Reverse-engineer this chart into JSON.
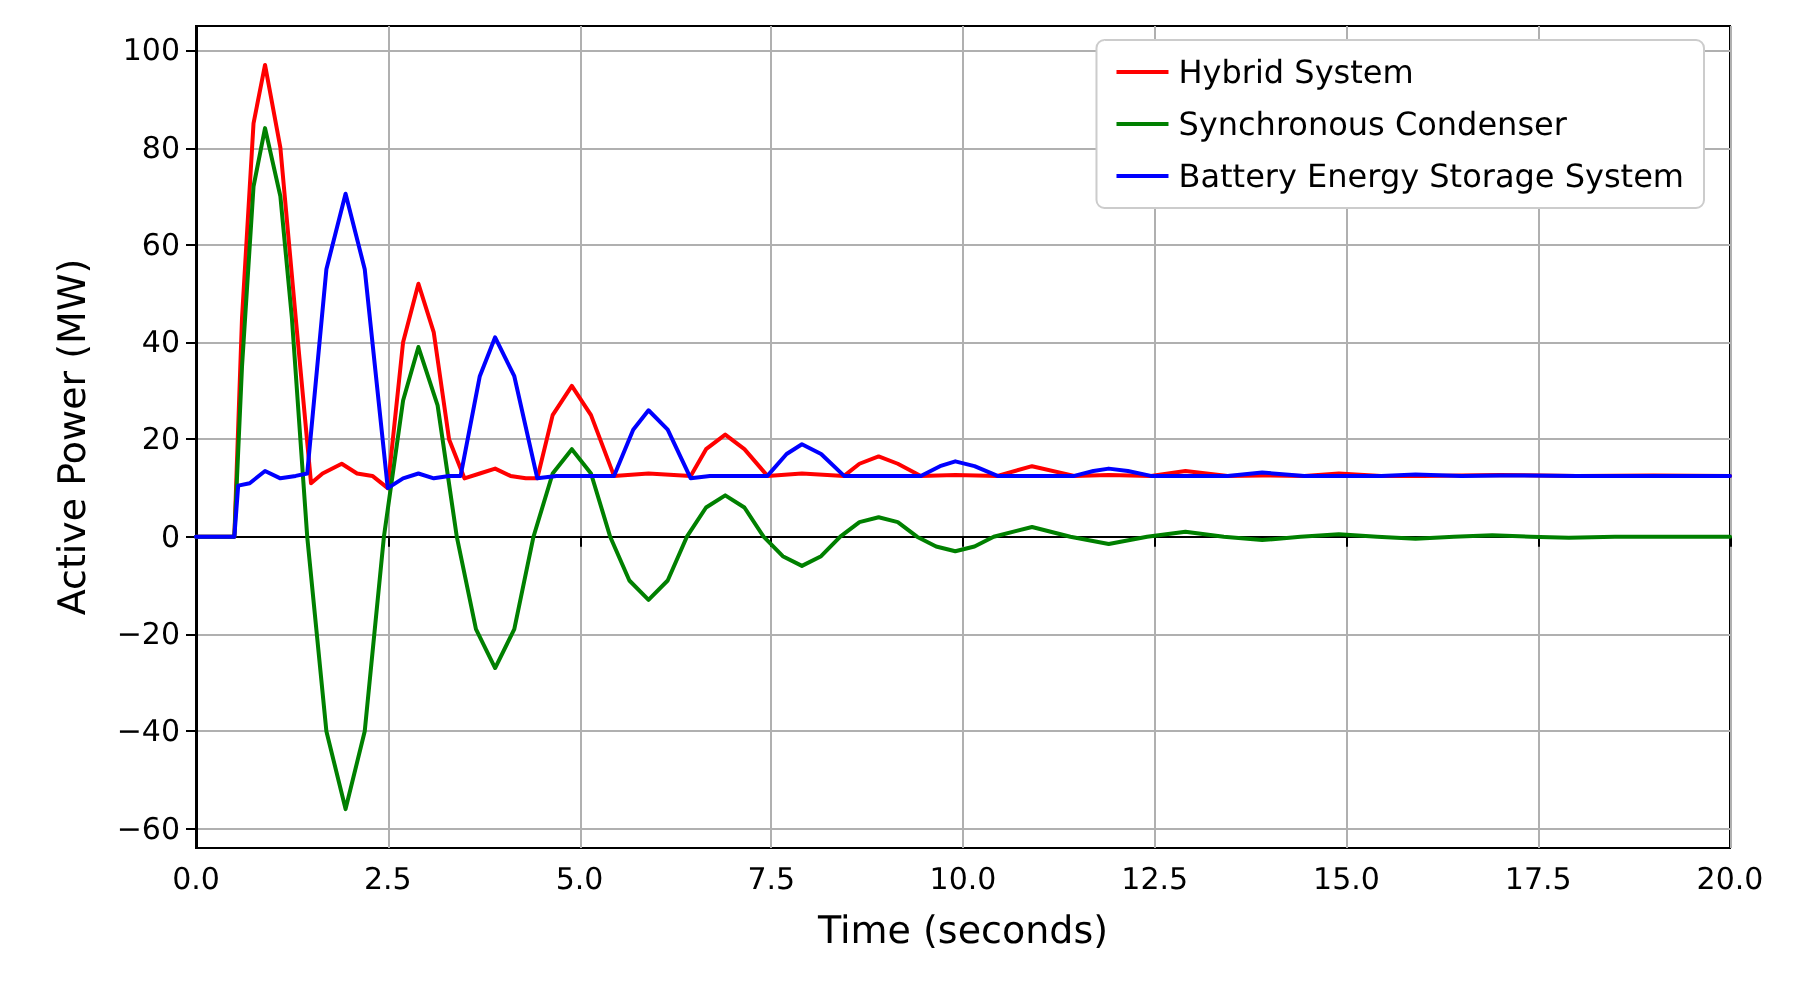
{
  "chart_data": {
    "type": "line",
    "xlabel": "Time (seconds)",
    "ylabel": "Active Power (MW)",
    "xlim": [
      0,
      20
    ],
    "xticks": [
      {
        "value": 0,
        "label": "0.0"
      },
      2.5,
      {
        "value": 5,
        "label": "5.0"
      },
      7.5,
      {
        "value": 10,
        "label": "10.0"
      },
      12.5,
      {
        "value": 15,
        "label": "15.0"
      },
      17.5,
      {
        "value": 20,
        "label": "20.0"
      }
    ],
    "ylim": [
      -64,
      105
    ],
    "yticks": [
      -60,
      -40,
      -20,
      0,
      20,
      40,
      60,
      80,
      100
    ],
    "grid": true,
    "legend": "top right",
    "marker": "none",
    "line_style": "solid",
    "series": [
      {
        "name": "Hybrid System",
        "color": "#ff0000",
        "x": [
          0,
          0.5,
          0.6,
          0.75,
          0.9,
          1.1,
          1.3,
          1.5,
          1.65,
          1.9,
          2.1,
          2.3,
          2.5,
          2.7,
          2.9,
          3.1,
          3.3,
          3.5,
          3.7,
          3.9,
          4.1,
          4.3,
          4.45,
          4.65,
          4.9,
          5.15,
          5.45,
          5.9,
          6.45,
          6.65,
          6.9,
          7.15,
          7.45,
          7.9,
          8.45,
          8.65,
          8.9,
          9.15,
          9.45,
          9.9,
          10.45,
          10.9,
          11.45,
          11.9,
          12.45,
          12.9,
          13.45,
          13.9,
          14.45,
          14.9,
          15.45,
          16,
          17,
          18,
          19,
          20
        ],
        "values": [
          0,
          0,
          45,
          85,
          97,
          80,
          45,
          11,
          13,
          15,
          13,
          12.5,
          10,
          40,
          52,
          42,
          20,
          12,
          13,
          14,
          12.5,
          12,
          12,
          25,
          31,
          25,
          12.5,
          13,
          12.5,
          18,
          21,
          18,
          12.5,
          13,
          12.5,
          15,
          16.5,
          15,
          12.5,
          12.7,
          12.5,
          14.5,
          12.5,
          12.7,
          12.5,
          13.5,
          12.5,
          12.6,
          12.5,
          13,
          12.5,
          12.5,
          12.7,
          12.5,
          12.6,
          12.5
        ]
      },
      {
        "name": "Synchronous Condenser",
        "color": "#008000",
        "x": [
          0,
          0.5,
          0.6,
          0.75,
          0.9,
          1.1,
          1.25,
          1.45,
          1.7,
          1.95,
          2.2,
          2.45,
          2.7,
          2.9,
          3.15,
          3.4,
          3.65,
          3.9,
          4.15,
          4.4,
          4.65,
          4.9,
          5.15,
          5.4,
          5.65,
          5.9,
          6.15,
          6.4,
          6.65,
          6.9,
          7.15,
          7.4,
          7.65,
          7.9,
          8.15,
          8.4,
          8.65,
          8.9,
          9.15,
          9.4,
          9.65,
          9.9,
          10.15,
          10.4,
          10.9,
          11.4,
          11.9,
          12.4,
          12.9,
          13.4,
          13.9,
          14.4,
          14.9,
          15.4,
          15.9,
          16.4,
          16.9,
          17.4,
          17.9,
          18.5,
          19.2,
          20
        ],
        "values": [
          0,
          0,
          35,
          72,
          84,
          70,
          45,
          0,
          -40,
          -56,
          -40,
          0,
          28,
          39,
          27,
          0,
          -19,
          -27,
          -19,
          0,
          13,
          18,
          13,
          0,
          -9,
          -13,
          -9,
          0,
          6,
          8.5,
          6,
          0,
          -4,
          -6,
          -4,
          0,
          3,
          4,
          3,
          0,
          -2,
          -3,
          -2,
          0,
          2,
          0,
          -1.5,
          0,
          1,
          0,
          -0.7,
          0,
          0.5,
          0,
          -0.4,
          0,
          0.3,
          0,
          -0.2,
          0,
          0,
          0
        ]
      },
      {
        "name": "Battery Energy Storage System",
        "color": "#0000ff",
        "x": [
          0,
          0.5,
          0.55,
          0.7,
          0.9,
          1.1,
          1.3,
          1.45,
          1.7,
          1.95,
          2.2,
          2.5,
          2.7,
          2.9,
          3.1,
          3.3,
          3.45,
          3.7,
          3.9,
          4.15,
          4.45,
          4.7,
          4.9,
          5.2,
          5.45,
          5.7,
          5.9,
          6.15,
          6.45,
          6.7,
          6.9,
          7.2,
          7.45,
          7.7,
          7.9,
          8.15,
          8.45,
          8.7,
          8.9,
          9.2,
          9.45,
          9.7,
          9.9,
          10.15,
          10.45,
          10.7,
          10.9,
          11.2,
          11.45,
          11.7,
          11.9,
          12.15,
          12.45,
          12.9,
          13.45,
          13.9,
          14.45,
          14.9,
          15.45,
          15.9,
          16.5,
          17,
          18,
          19,
          20
        ],
        "values": [
          0,
          0,
          10.5,
          11,
          13.5,
          12,
          12.5,
          13,
          55,
          70.5,
          55,
          10,
          12,
          13,
          12,
          12.5,
          12.5,
          33,
          41,
          33,
          12,
          12.5,
          12.5,
          12.5,
          12.5,
          22,
          26,
          22,
          12,
          12.5,
          12.5,
          12.5,
          12.5,
          17,
          19,
          17,
          12.5,
          12.5,
          12.5,
          12.5,
          12.5,
          14.5,
          15.5,
          14.5,
          12.5,
          12.5,
          12.5,
          12.5,
          12.5,
          13.5,
          14,
          13.5,
          12.5,
          12.5,
          12.5,
          13.2,
          12.5,
          12.5,
          12.5,
          12.8,
          12.5,
          12.6,
          12.5,
          12.5,
          12.5
        ]
      }
    ]
  }
}
